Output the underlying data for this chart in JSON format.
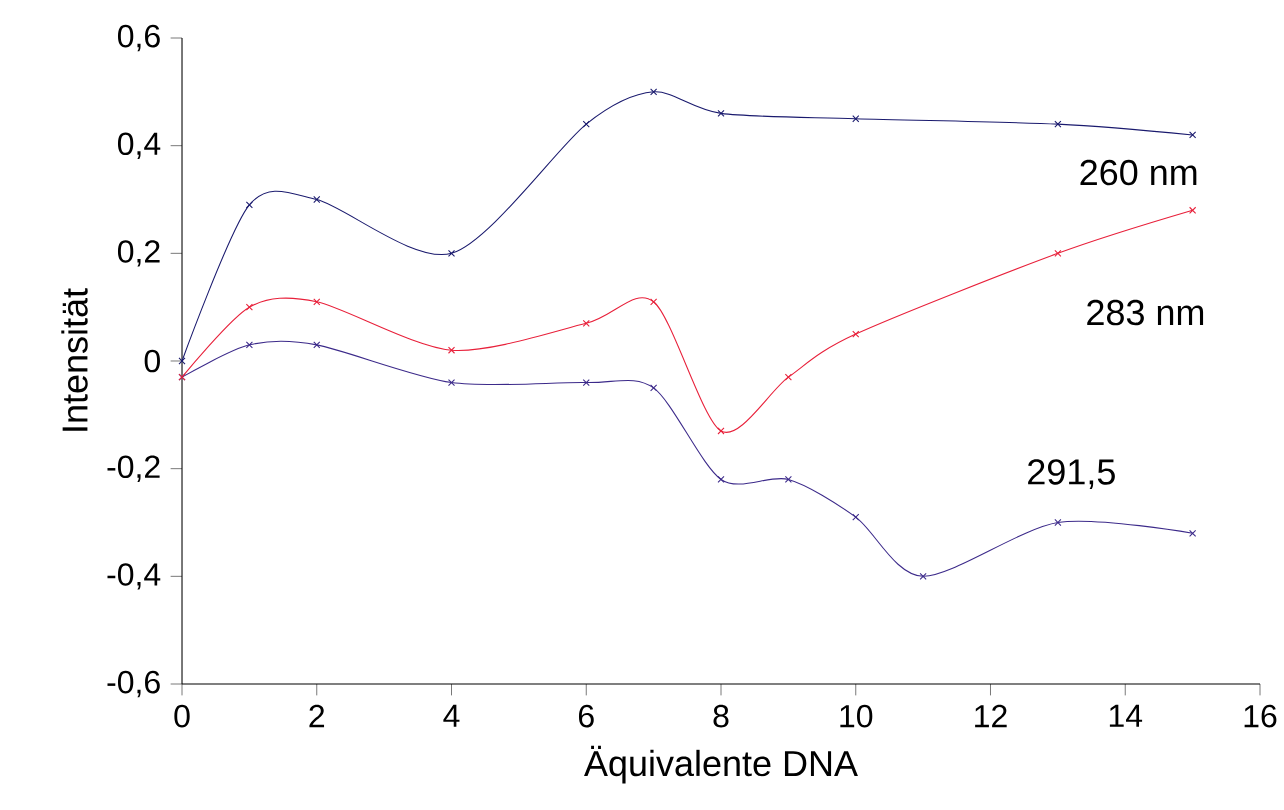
{
  "chart_data": {
    "type": "line",
    "xlabel": "Äquivalente DNA",
    "ylabel": "Intensität",
    "xlim": [
      0,
      16
    ],
    "xticks": [
      0,
      2,
      4,
      6,
      8,
      10,
      12,
      14,
      16
    ],
    "ylim": [
      -0.6,
      0.6
    ],
    "yticks": [
      {
        "value": -0.6,
        "label": "-0,6"
      },
      {
        "value": -0.4,
        "label": "-0,4"
      },
      {
        "value": -0.2,
        "label": "-0,2"
      },
      0,
      {
        "value": 0.2,
        "label": "0,2"
      },
      {
        "value": 0.4,
        "label": "0,4"
      },
      {
        "value": 0.6,
        "label": "0,6"
      }
    ],
    "x": [
      0,
      1,
      2,
      4,
      6,
      7,
      8,
      9,
      10,
      11,
      13,
      15
    ],
    "series": [
      {
        "name": "260 nm",
        "color": "#1a1a6e",
        "values": [
          0,
          0.29,
          0.3,
          0.2,
          0.44,
          0.5,
          0.46,
          null,
          0.45,
          null,
          0.44,
          0.42
        ]
      },
      {
        "name": "283 nm",
        "color": "#e8203a",
        "values": [
          -0.03,
          0.1,
          0.11,
          0.02,
          0.07,
          0.11,
          -0.13,
          -0.03,
          0.05,
          null,
          0.2,
          0.28
        ]
      },
      {
        "name": "291,5",
        "color": "#3c2a8a",
        "values": [
          -0.03,
          0.03,
          0.03,
          -0.04,
          -0.04,
          -0.05,
          -0.22,
          -0.22,
          -0.29,
          -0.4,
          -0.3,
          -0.32
        ]
      }
    ],
    "marker": "cross"
  }
}
